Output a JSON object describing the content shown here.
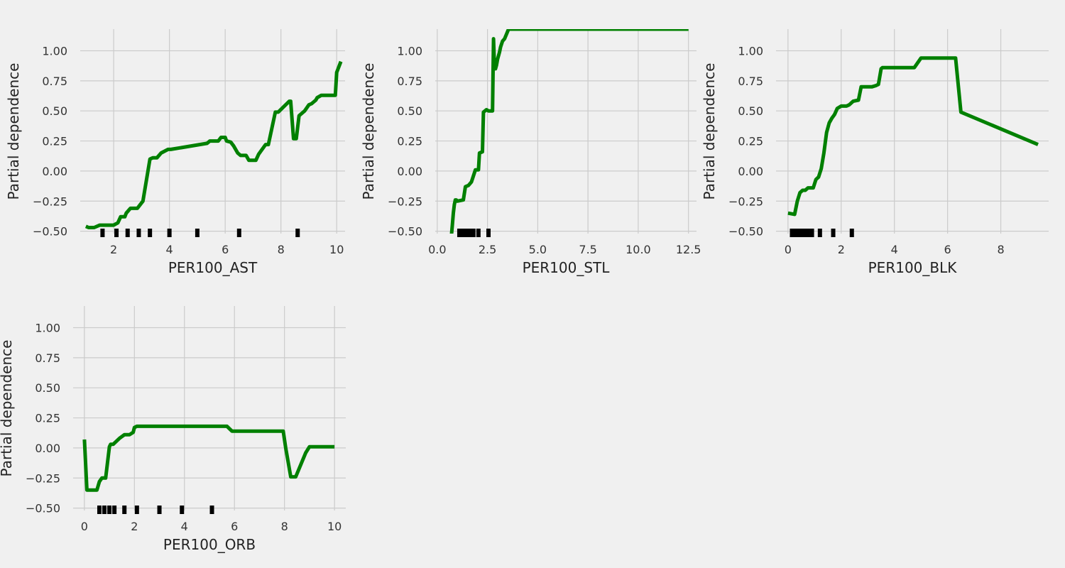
{
  "chart_data": [
    {
      "type": "line",
      "title": "",
      "xlabel": "PER100_AST",
      "ylabel": "Partial dependence",
      "xlim": [
        0.8,
        10.3
      ],
      "ylim": [
        -0.52,
        1.18
      ],
      "xticks": [
        2,
        4,
        6,
        8,
        10
      ],
      "xtick_labels": [
        "2",
        "4",
        "6",
        "8",
        "10"
      ],
      "yticks": [
        -0.5,
        -0.25,
        0.0,
        0.25,
        0.5,
        0.75,
        1.0
      ],
      "ytick_labels": [
        "−0.50",
        "−0.25",
        "0.00",
        "0.25",
        "0.50",
        "0.75",
        "1.00"
      ],
      "grid": true,
      "line_color": "#008000",
      "x": [
        1.0,
        1.1,
        1.3,
        1.5,
        2.0,
        2.15,
        2.25,
        2.4,
        2.45,
        2.6,
        2.85,
        2.95,
        3.05,
        3.3,
        3.4,
        3.55,
        3.7,
        3.95,
        4.05,
        5.35,
        5.45,
        5.75,
        5.85,
        6.0,
        6.05,
        6.2,
        6.3,
        6.45,
        6.55,
        6.75,
        6.85,
        7.1,
        7.2,
        7.45,
        7.55,
        7.8,
        7.9,
        8.3,
        8.35,
        8.45,
        8.55,
        8.65,
        8.75,
        8.85,
        9.0,
        9.1,
        9.25,
        9.3,
        9.45,
        9.95,
        10.0,
        10.15
      ],
      "y": [
        -0.46,
        -0.47,
        -0.47,
        -0.45,
        -0.45,
        -0.43,
        -0.38,
        -0.38,
        -0.35,
        -0.31,
        -0.31,
        -0.28,
        -0.25,
        0.1,
        0.11,
        0.11,
        0.15,
        0.18,
        0.18,
        0.23,
        0.25,
        0.25,
        0.28,
        0.28,
        0.25,
        0.24,
        0.21,
        0.15,
        0.13,
        0.13,
        0.09,
        0.09,
        0.14,
        0.22,
        0.22,
        0.49,
        0.49,
        0.58,
        0.58,
        0.27,
        0.27,
        0.46,
        0.48,
        0.5,
        0.55,
        0.56,
        0.59,
        0.61,
        0.63,
        0.63,
        0.82,
        0.91
      ],
      "rug": [
        1.6,
        2.1,
        2.5,
        2.9,
        3.3,
        4.0,
        5.0,
        6.5,
        8.6
      ]
    },
    {
      "type": "line",
      "title": "",
      "xlabel": "PER100_STL",
      "ylabel": "Partial dependence",
      "xlim": [
        -0.1,
        12.9
      ],
      "ylim": [
        -0.52,
        1.18
      ],
      "xticks": [
        0.0,
        2.5,
        5.0,
        7.5,
        10.0,
        12.5
      ],
      "xtick_labels": [
        "0.0",
        "2.5",
        "5.0",
        "7.5",
        "10.0",
        "12.5"
      ],
      "yticks": [
        -0.5,
        -0.25,
        0.0,
        0.25,
        0.5,
        0.75,
        1.0
      ],
      "ytick_labels": [
        "−0.50",
        "−0.25",
        "0.00",
        "0.25",
        "0.50",
        "0.75",
        "1.00"
      ],
      "grid": true,
      "line_color": "#008000",
      "x": [
        0.7,
        0.75,
        0.8,
        0.85,
        0.9,
        0.95,
        1.0,
        1.3,
        1.4,
        1.55,
        1.7,
        1.8,
        1.9,
        2.05,
        2.1,
        2.25,
        2.3,
        2.45,
        2.55,
        2.75,
        2.8,
        2.85,
        2.9,
        2.95,
        3.0,
        3.1,
        3.15,
        3.25,
        3.35,
        3.45,
        3.55,
        3.6,
        12.5
      ],
      "y": [
        -0.55,
        -0.45,
        -0.35,
        -0.28,
        -0.24,
        -0.24,
        -0.25,
        -0.24,
        -0.13,
        -0.12,
        -0.09,
        -0.04,
        0.01,
        0.01,
        0.15,
        0.16,
        0.49,
        0.51,
        0.5,
        0.5,
        1.1,
        0.86,
        0.85,
        0.88,
        0.93,
        0.99,
        1.03,
        1.08,
        1.1,
        1.14,
        1.18,
        1.18,
        1.18
      ],
      "rug": [
        1.1,
        1.25,
        1.4,
        1.5,
        1.6,
        1.7,
        1.8,
        2.05,
        2.55
      ]
    },
    {
      "type": "line",
      "title": "",
      "xlabel": "PER100_BLK",
      "ylabel": "Partial dependence",
      "xlim": [
        -0.45,
        9.8
      ],
      "ylim": [
        -0.52,
        1.18
      ],
      "xticks": [
        0,
        2,
        4,
        6,
        8
      ],
      "xtick_labels": [
        "0",
        "2",
        "4",
        "6",
        "8"
      ],
      "yticks": [
        -0.5,
        -0.25,
        0.0,
        0.25,
        0.5,
        0.75,
        1.0
      ],
      "ytick_labels": [
        "−0.50",
        "−0.25",
        "0.00",
        "0.25",
        "0.50",
        "0.75",
        "1.00"
      ],
      "grid": true,
      "line_color": "#008000",
      "x": [
        0.0,
        0.25,
        0.35,
        0.45,
        0.55,
        0.65,
        0.75,
        0.95,
        1.05,
        1.15,
        1.25,
        1.35,
        1.45,
        1.55,
        1.65,
        1.75,
        1.85,
        2.0,
        2.2,
        2.3,
        2.45,
        2.65,
        2.75,
        3.15,
        3.3,
        3.4,
        3.5,
        3.55,
        3.65,
        4.75,
        5.0,
        6.3,
        6.5,
        9.4
      ],
      "y": [
        -0.35,
        -0.36,
        -0.25,
        -0.18,
        -0.16,
        -0.16,
        -0.14,
        -0.14,
        -0.07,
        -0.05,
        0.02,
        0.15,
        0.32,
        0.4,
        0.44,
        0.47,
        0.52,
        0.54,
        0.54,
        0.55,
        0.58,
        0.59,
        0.7,
        0.7,
        0.71,
        0.72,
        0.85,
        0.86,
        0.86,
        0.86,
        0.94,
        0.94,
        0.49,
        0.22
      ],
      "rug": [
        0.15,
        0.25,
        0.35,
        0.45,
        0.55,
        0.65,
        0.75,
        0.9,
        1.2,
        1.7,
        2.4
      ]
    },
    {
      "type": "line",
      "title": "",
      "xlabel": "PER100_ORB",
      "ylabel": "Partial dependence",
      "xlim": [
        -0.45,
        10.45
      ],
      "ylim": [
        -0.52,
        1.18
      ],
      "xticks": [
        0,
        2,
        4,
        6,
        8,
        10
      ],
      "xtick_labels": [
        "0",
        "2",
        "4",
        "6",
        "8",
        "10"
      ],
      "yticks": [
        -0.5,
        -0.25,
        0.0,
        0.25,
        0.5,
        0.75,
        1.0
      ],
      "ytick_labels": [
        "−0.50",
        "−0.25",
        "0.00",
        "0.25",
        "0.50",
        "0.75",
        "1.00"
      ],
      "grid": true,
      "line_color": "#008000",
      "x": [
        0.0,
        0.1,
        0.2,
        0.5,
        0.6,
        0.7,
        0.85,
        1.0,
        1.05,
        1.15,
        1.4,
        1.6,
        1.8,
        1.95,
        2.0,
        2.1,
        5.7,
        5.9,
        7.95,
        8.05,
        8.25,
        8.45,
        8.85,
        9.0,
        10.0
      ],
      "y": [
        0.07,
        -0.35,
        -0.35,
        -0.35,
        -0.28,
        -0.25,
        -0.25,
        0.01,
        0.03,
        0.03,
        0.08,
        0.11,
        0.11,
        0.13,
        0.17,
        0.18,
        0.18,
        0.14,
        0.14,
        0.0,
        -0.24,
        -0.24,
        -0.04,
        0.01,
        0.01
      ],
      "rug": [
        0.6,
        0.8,
        1.0,
        1.2,
        1.6,
        2.1,
        3.0,
        3.9,
        5.1
      ]
    }
  ]
}
